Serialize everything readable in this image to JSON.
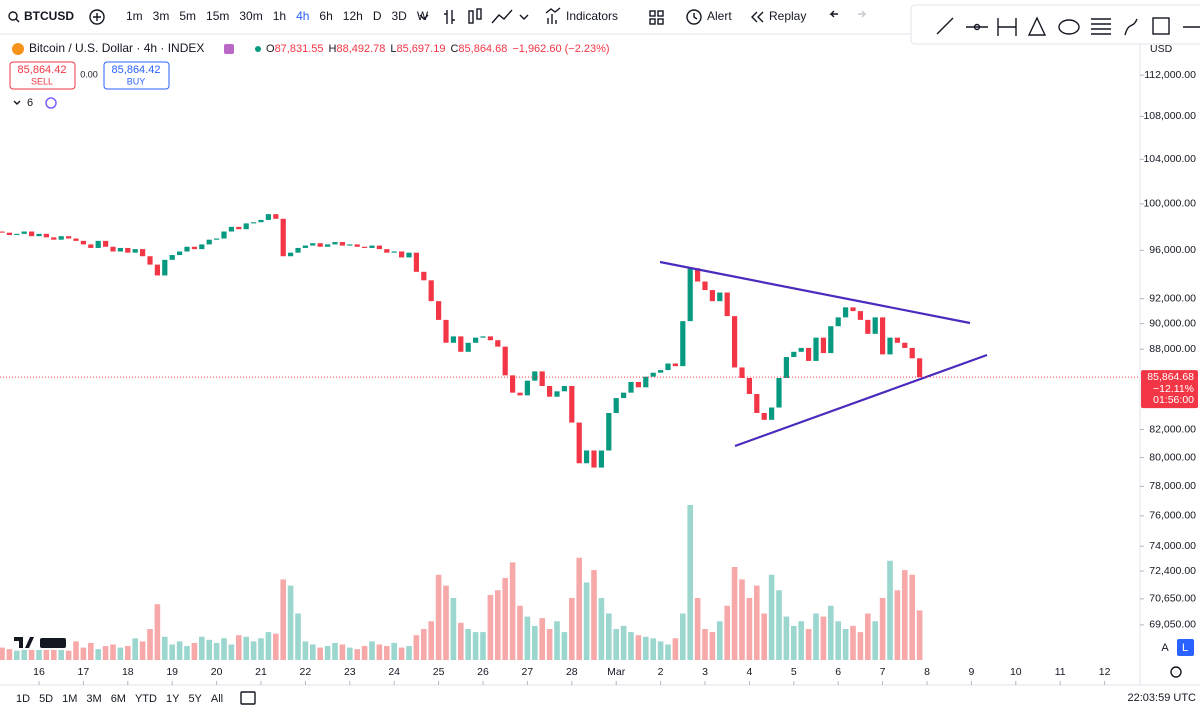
{
  "toolbar": {
    "symbol": "BTCUSD",
    "intervals": [
      "1m",
      "3m",
      "5m",
      "15m",
      "30m",
      "1h",
      "4h",
      "6h",
      "12h",
      "D",
      "3D",
      "W"
    ],
    "active_interval": "4h",
    "indicators": "Indicators",
    "alert": "Alert",
    "replay": "Replay"
  },
  "legend": {
    "title": "Bitcoin / U.S. Dollar · 4h · INDEX",
    "ohlc": [
      {
        "label": "O",
        "value": "87,831.55"
      },
      {
        "label": "H",
        "value": "88,492.78"
      },
      {
        "label": "L",
        "value": "85,697.19"
      },
      {
        "label": "C",
        "value": "85,864.68"
      }
    ],
    "change": "−1,962.60 (−2.23%)"
  },
  "trade": {
    "sell_price": "85,864.42",
    "sell": "SELL",
    "spread": "0.00",
    "buy_price": "85,864.42",
    "buy": "BUY"
  },
  "indicator_count": "6",
  "chart_data": {
    "type": "candlestick",
    "currency": "USD",
    "log_scale": true,
    "grid": false,
    "up_color": "#089981",
    "down_color": "#f23645",
    "up_volume_color": "#9bd6cf",
    "down_volume_color": "#f6a9a8",
    "ylim": [
      66950,
      116530
    ],
    "yticks": [
      {
        "value": 112000,
        "label": "112,000.00"
      },
      {
        "value": 108000,
        "label": "108,000.00"
      },
      {
        "value": 104000,
        "label": "104,000.00"
      },
      {
        "value": 100000,
        "label": "100,000.00"
      },
      {
        "value": 96000,
        "label": "96,000.00"
      },
      {
        "value": 92000,
        "label": "92,000.00"
      },
      {
        "value": 90000,
        "label": "90,000.00"
      },
      {
        "value": 88000,
        "label": "88,000.00"
      },
      {
        "value": 82000,
        "label": "82,000.00"
      },
      {
        "value": 80000,
        "label": "80,000.00"
      },
      {
        "value": 78000,
        "label": "78,000.00"
      },
      {
        "value": 76000,
        "label": "76,000.00"
      },
      {
        "value": 74000,
        "label": "74,000.00"
      },
      {
        "value": 72400,
        "label": "72,400.00"
      },
      {
        "value": 70650,
        "label": "70,650.00"
      },
      {
        "value": 69050,
        "label": "69,050.00"
      }
    ],
    "date_labels": [
      "16",
      "17",
      "18",
      "19",
      "20",
      "21",
      "22",
      "23",
      "24",
      "25",
      "26",
      "27",
      "28",
      "Mar",
      "2",
      "3",
      "4",
      "5",
      "6",
      "7",
      "8",
      "9",
      "10",
      "11",
      "12"
    ],
    "open": 97600,
    "close": [
      97500,
      97300,
      97400,
      97600,
      97200,
      97400,
      97100,
      96900,
      97200,
      97000,
      96800,
      96500,
      96200,
      96800,
      96300,
      95900,
      96200,
      95800,
      96100,
      95500,
      94800,
      93900,
      95200,
      95600,
      95900,
      96300,
      96100,
      96500,
      96900,
      97000,
      97600,
      98000,
      97800,
      98300,
      98400,
      98600,
      99100,
      98700,
      95500,
      95800,
      96200,
      96400,
      96600,
      96300,
      96500,
      96700,
      96400,
      96500,
      96300,
      96200,
      96400,
      96100,
      95800,
      95900,
      95400,
      95800,
      94200,
      93500,
      91800,
      90300,
      88500,
      89000,
      87800,
      88500,
      88900,
      89000,
      88700,
      88200,
      86000,
      84700,
      84500,
      85600,
      86300,
      85200,
      84400,
      84800,
      85200,
      82500,
      79600,
      80500,
      79300,
      80500,
      83200,
      84300,
      84700,
      85500,
      85100,
      85900,
      86200,
      86400,
      86900,
      86700,
      90200,
      94500,
      93400,
      92700,
      91800,
      92500,
      90600,
      86600,
      85800,
      84600,
      83200,
      82700,
      83600,
      85800,
      87400,
      87800,
      88100,
      87100,
      88900,
      87700,
      89800,
      90500,
      91300,
      91000,
      90300,
      89200,
      90500,
      87600,
      88900,
      88500,
      88100,
      87300,
      85864.68
    ],
    "volume": [
      8,
      7,
      6,
      9,
      8,
      7,
      10,
      8,
      9,
      6,
      12,
      8,
      11,
      7,
      9,
      10,
      8,
      9,
      14,
      12,
      20,
      36,
      15,
      10,
      12,
      9,
      11,
      15,
      13,
      11,
      14,
      10,
      16,
      15,
      12,
      14,
      18,
      17,
      52,
      48,
      30,
      12,
      10,
      8,
      9,
      11,
      10,
      8,
      7,
      9,
      12,
      10,
      9,
      11,
      8,
      9,
      16,
      20,
      25,
      55,
      48,
      40,
      24,
      20,
      18,
      18,
      42,
      45,
      53,
      63,
      35,
      28,
      22,
      27,
      20,
      25,
      18,
      40,
      66,
      50,
      58,
      40,
      30,
      20,
      22,
      18,
      16,
      15,
      14,
      12,
      10,
      14,
      30,
      100,
      40,
      20,
      18,
      25,
      35,
      60,
      52,
      40,
      48,
      30,
      55,
      45,
      28,
      22,
      25,
      20,
      30,
      28,
      35,
      25,
      20,
      22,
      18,
      30,
      25,
      40,
      64,
      45,
      58,
      55,
      32
    ],
    "price_label": {
      "price": "85,864.68",
      "change": "−12.11%",
      "countdown": "01:56:00"
    }
  },
  "bottom": {
    "ranges": [
      "1D",
      "5D",
      "1M",
      "3M",
      "6M",
      "YTD",
      "1Y",
      "5Y",
      "All"
    ],
    "clock": "22:03:59 UTC",
    "scale_buttons": [
      "A",
      "L"
    ]
  }
}
